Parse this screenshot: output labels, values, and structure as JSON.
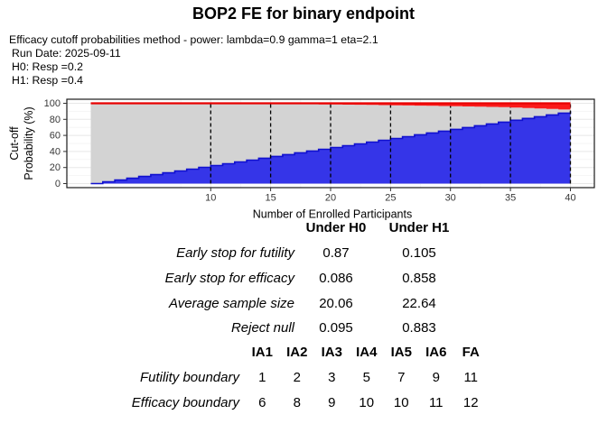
{
  "header": {
    "title": "BOP2 FE for binary endpoint",
    "meta_lines": [
      "Efficacy cutoff probabilities method - power: lambda=0.9 gamma=1 eta=2.1",
      "Run Date: 2025-09-11",
      "H0: Resp =0.2",
      "H1: Resp =0.4"
    ]
  },
  "chart_data": {
    "type": "area",
    "title": "",
    "xlabel": "Number of Enrolled Participants",
    "ylabel_lines": [
      "Cut-off",
      "Probability (%)"
    ],
    "x_ticks": [
      10,
      15,
      20,
      25,
      30,
      35,
      40
    ],
    "y_ticks": [
      0,
      20,
      40,
      60,
      80,
      100
    ],
    "xlim": [
      0,
      40
    ],
    "ylim": [
      0,
      100
    ],
    "grid": true,
    "legend": "none",
    "analysis_vlines_x": [
      10,
      15,
      20,
      25,
      30,
      35,
      40
    ],
    "series": [
      {
        "name": "futility-cutoff-percent",
        "area": "below",
        "fill": "#3535E8",
        "line": "#1111CF",
        "points": [
          [
            0,
            0
          ],
          [
            5,
            11.2
          ],
          [
            10,
            22.5
          ],
          [
            15,
            33.8
          ],
          [
            20,
            45
          ],
          [
            25,
            56.2
          ],
          [
            30,
            67.5
          ],
          [
            35,
            78.8
          ],
          [
            40,
            90
          ]
        ]
      },
      {
        "name": "efficacy-cutoff-percent",
        "area": "above",
        "fill": "#FA1A1A",
        "line": "#E80000",
        "points": [
          [
            0,
            100
          ],
          [
            13,
            100
          ],
          [
            14,
            99.4
          ],
          [
            20,
            98.5
          ],
          [
            25,
            97.5
          ],
          [
            30,
            96.3
          ],
          [
            33,
            95.5
          ],
          [
            35,
            94.7
          ],
          [
            37,
            93.6
          ],
          [
            38.5,
            92.6
          ],
          [
            40,
            91.5
          ]
        ]
      }
    ],
    "between_region_fill": "#D3D3D3",
    "top_reference_line_y": 100
  },
  "summary_table": {
    "headers": [
      "Under H0",
      "Under H1"
    ],
    "rows": [
      {
        "label": "Early stop for futility",
        "values": [
          "0.87",
          "0.105"
        ]
      },
      {
        "label": "Early stop for efficacy",
        "values": [
          "0.086",
          "0.858"
        ]
      },
      {
        "label": "Average sample size",
        "values": [
          "20.06",
          "22.64"
        ]
      },
      {
        "label": "Reject null",
        "values": [
          "0.095",
          "0.883"
        ]
      }
    ]
  },
  "boundary_table": {
    "headers": [
      "IA1",
      "IA2",
      "IA3",
      "IA4",
      "IA5",
      "IA6",
      "FA"
    ],
    "rows": [
      {
        "label": "Futility boundary",
        "values": [
          "1",
          "2",
          "3",
          "5",
          "7",
          "9",
          "11"
        ]
      },
      {
        "label": "Efficacy boundary",
        "values": [
          "6",
          "8",
          "9",
          "10",
          "10",
          "11",
          "12"
        ]
      }
    ]
  },
  "colors": {
    "futility_fill": "#3535E8",
    "efficacy_fill": "#FA1A1A",
    "between_fill": "#D3D3D3",
    "axis_text": "#383838",
    "panel_border": "#1A1A1A"
  }
}
